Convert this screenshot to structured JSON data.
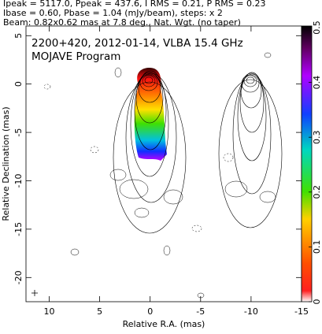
{
  "header_lines": [
    "Ipeak = 5117.0, Ppeak = 437.6, I RMS = 0.21, P RMS = 0.23",
    "Ibase = 0.60, Pbase = 1.04 (mJy/beam), steps: x 2",
    "Beam: 0.82x0.62 mas at 7.8 deg., Nat. Wgt. (no taper)"
  ],
  "chart_data": {
    "type": "contour",
    "title": "2200+420, 2012-01-14, VLBA 15.4 GHz",
    "subtitle": "MOJAVE Program",
    "xlabel": "Relative R.A. (mas)",
    "ylabel": "Relative Declination (mas)",
    "xlim": [
      12.3,
      -15
    ],
    "xticks": [
      10,
      5,
      0,
      -5,
      -10,
      -15
    ],
    "ylim": [
      -22.5,
      6
    ],
    "yticks": [
      5,
      0,
      -5,
      -10,
      -15,
      -20
    ],
    "colorbar": {
      "lim": [
        0,
        0.5
      ],
      "ticks": [
        0,
        0.1,
        0.2,
        0.3,
        0.4,
        0.5
      ]
    }
  }
}
